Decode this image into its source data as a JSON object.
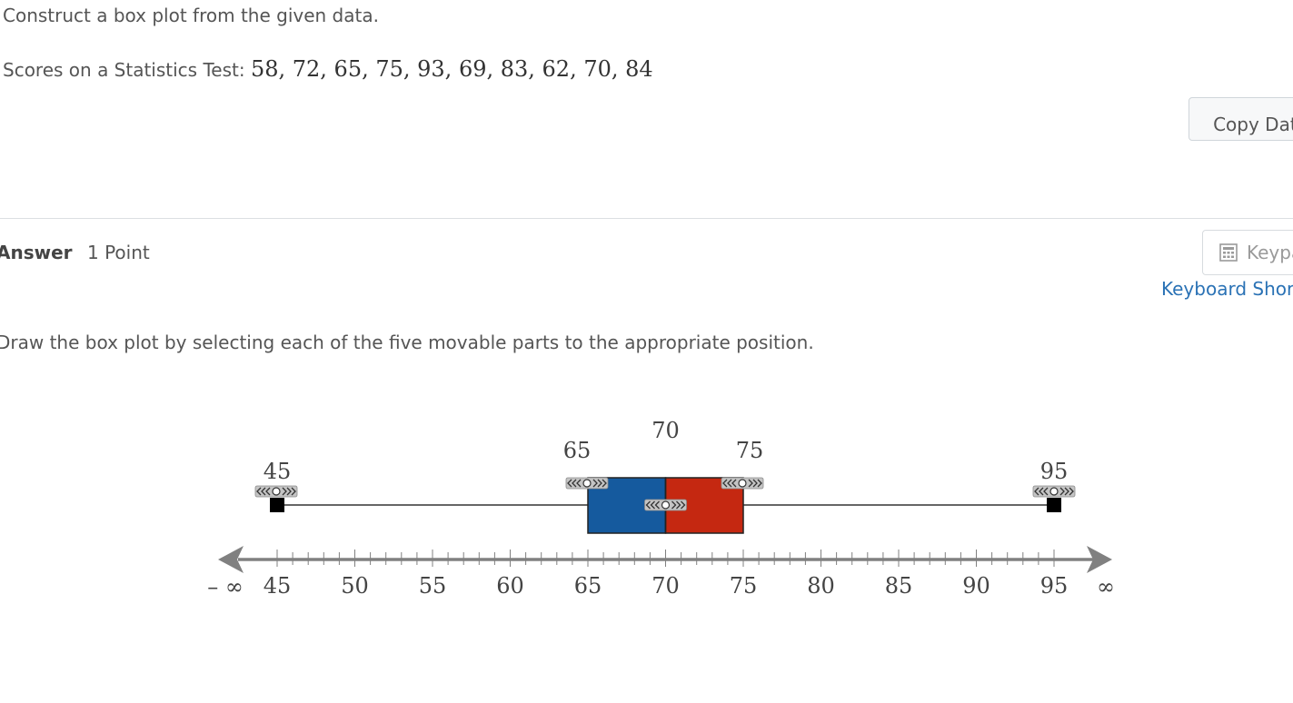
{
  "question": {
    "prompt": "Construct a box plot from the given data.",
    "data_label": "Scores on a Statistics Test:",
    "data_values": "58, 72, 65, 75, 93, 69, 83, 62, 70, 84",
    "copy_data_label": "Copy Data"
  },
  "answer": {
    "title": "Answer",
    "points": "1 Point",
    "keypad_label": "Keypad",
    "keyboard_shortcuts_label": "Keyboard Shortcuts",
    "instruction": "Draw the box plot by selecting each of the five movable parts to the appropriate position."
  },
  "chart_data": {
    "type": "boxplot",
    "axis": {
      "min": 45,
      "max": 95,
      "major_ticks": [
        45,
        50,
        55,
        60,
        65,
        70,
        75,
        80,
        85,
        90,
        95
      ],
      "minor_step": 1,
      "neg_infinity_label": "– ∞",
      "pos_infinity_label": "∞"
    },
    "box": {
      "min": 45,
      "q1": 65,
      "median": 70,
      "q3": 75,
      "max": 95
    },
    "value_labels": [
      "45",
      "65",
      "70",
      "75",
      "95"
    ],
    "colors": {
      "left_box": "#155a9e",
      "right_box": "#c52811",
      "axis": "#808080"
    }
  }
}
